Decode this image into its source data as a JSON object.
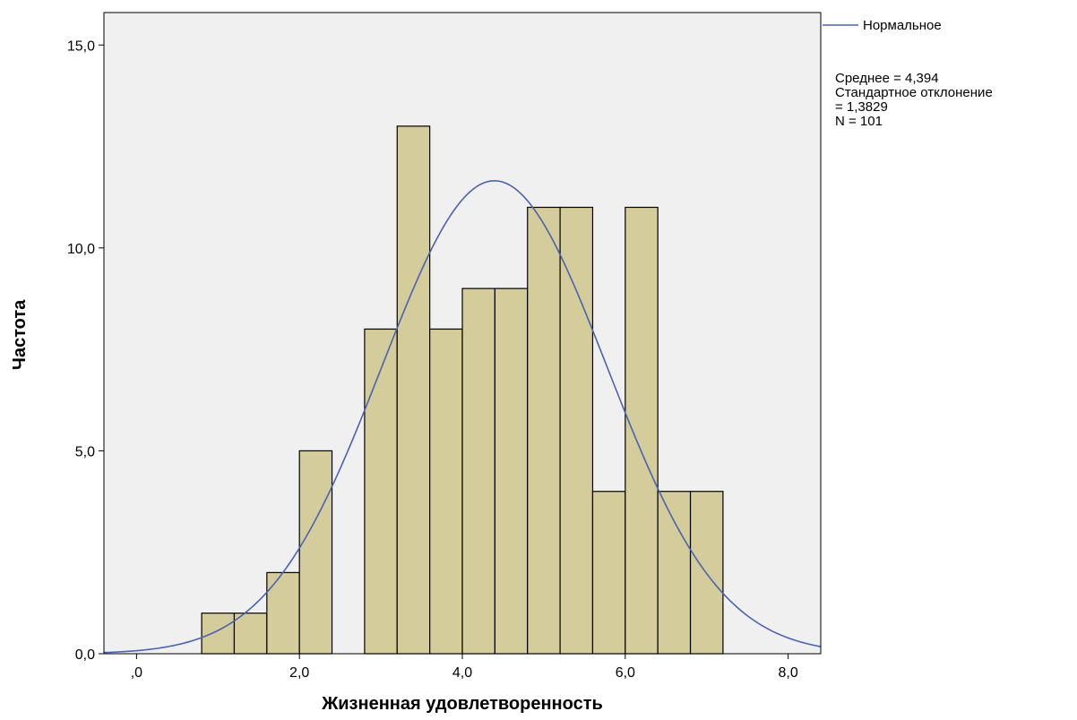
{
  "chart_data": {
    "type": "bar",
    "subtype": "histogram",
    "xlabel": "Жизненная удовлетворенность",
    "ylabel": "Частота",
    "xlim": [
      -0.4,
      8.4
    ],
    "ylim": [
      0,
      15.8
    ],
    "x_ticks": [
      0,
      2,
      4,
      6,
      8
    ],
    "x_tick_labels": [
      ",0",
      "2,0",
      "4,0",
      "6,0",
      "8,0"
    ],
    "y_ticks": [
      0,
      5,
      10,
      15
    ],
    "y_tick_labels": [
      "0,0",
      "5,0",
      "10,0",
      "15,0"
    ],
    "bin_width": 0.4,
    "bins": [
      {
        "x0": 0.8,
        "x1": 1.2,
        "count": 1
      },
      {
        "x0": 1.2,
        "x1": 1.6,
        "count": 1
      },
      {
        "x0": 1.6,
        "x1": 2.0,
        "count": 2
      },
      {
        "x0": 2.0,
        "x1": 2.4,
        "count": 5
      },
      {
        "x0": 2.8,
        "x1": 3.2,
        "count": 8
      },
      {
        "x0": 3.2,
        "x1": 3.6,
        "count": 13
      },
      {
        "x0": 3.6,
        "x1": 4.0,
        "count": 8
      },
      {
        "x0": 4.0,
        "x1": 4.4,
        "count": 9
      },
      {
        "x0": 4.4,
        "x1": 4.8,
        "count": 9
      },
      {
        "x0": 4.8,
        "x1": 5.2,
        "count": 11
      },
      {
        "x0": 5.2,
        "x1": 5.6,
        "count": 11
      },
      {
        "x0": 5.6,
        "x1": 6.0,
        "count": 4
      },
      {
        "x0": 6.0,
        "x1": 6.4,
        "count": 11
      },
      {
        "x0": 6.4,
        "x1": 6.8,
        "count": 4
      },
      {
        "x0": 6.8,
        "x1": 7.2,
        "count": 4
      }
    ],
    "normal_curve": {
      "name": "Нормальное",
      "mean": 4.394,
      "sd": 1.3829,
      "n": 101
    },
    "legend": {
      "position": "right",
      "series_label": "Нормальное",
      "stats": [
        "Среднее = 4,394",
        "Стандартное отклонение",
        "= 1,3829",
        "N = 101"
      ]
    },
    "grid": false,
    "colors": {
      "bar_fill": "#d4cc9a",
      "bar_stroke": "#000000",
      "plot_background": "#f0f0f0",
      "curve": "#4a63b0"
    }
  }
}
